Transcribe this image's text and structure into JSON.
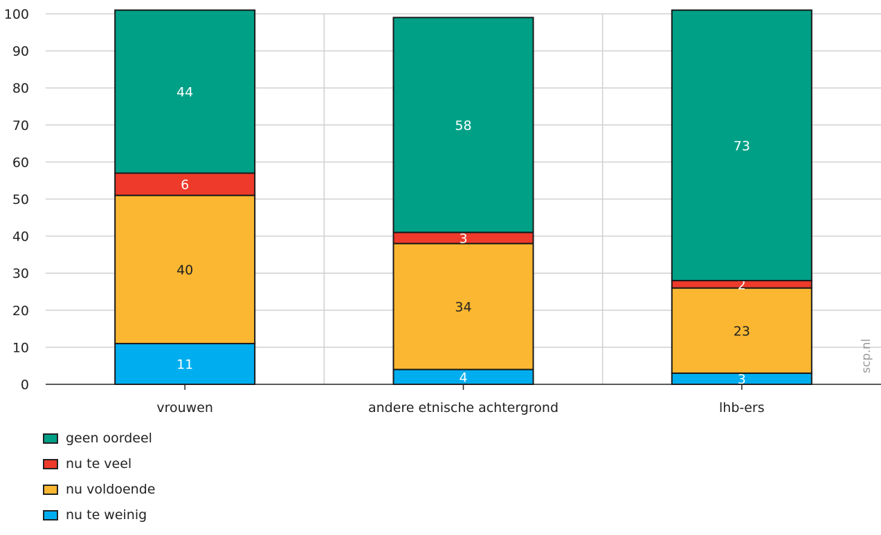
{
  "chart_data": {
    "type": "bar",
    "stacked": true,
    "categories": [
      "vrouwen",
      "andere etnische achtergrond",
      "lhb-ers"
    ],
    "series": [
      {
        "name": "nu te weinig",
        "color": "#00aeef",
        "label_color": "#ffffff",
        "values": [
          11,
          4,
          3
        ]
      },
      {
        "name": "nu voldoende",
        "color": "#fbb731",
        "label_color": "#222222",
        "values": [
          40,
          34,
          23
        ]
      },
      {
        "name": "nu te veel",
        "color": "#ee3a2a",
        "label_color": "#ffffff",
        "values": [
          6,
          3,
          2
        ]
      },
      {
        "name": "geen oordeel",
        "color": "#00a087",
        "label_color": "#ffffff",
        "values": [
          44,
          58,
          73
        ]
      }
    ],
    "ylim": [
      0,
      100
    ],
    "yticks": [
      0,
      10,
      20,
      30,
      40,
      50,
      60,
      70,
      80,
      90,
      100
    ],
    "grid": true,
    "legend_position": "bottom-left"
  },
  "legend": [
    {
      "label": "geen oordeel",
      "color": "#00a087"
    },
    {
      "label": "nu te veel",
      "color": "#ee3a2a"
    },
    {
      "label": "nu voldoende",
      "color": "#fbb731"
    },
    {
      "label": "nu te weinig",
      "color": "#00aeef"
    }
  ],
  "watermark": "scp.nl"
}
